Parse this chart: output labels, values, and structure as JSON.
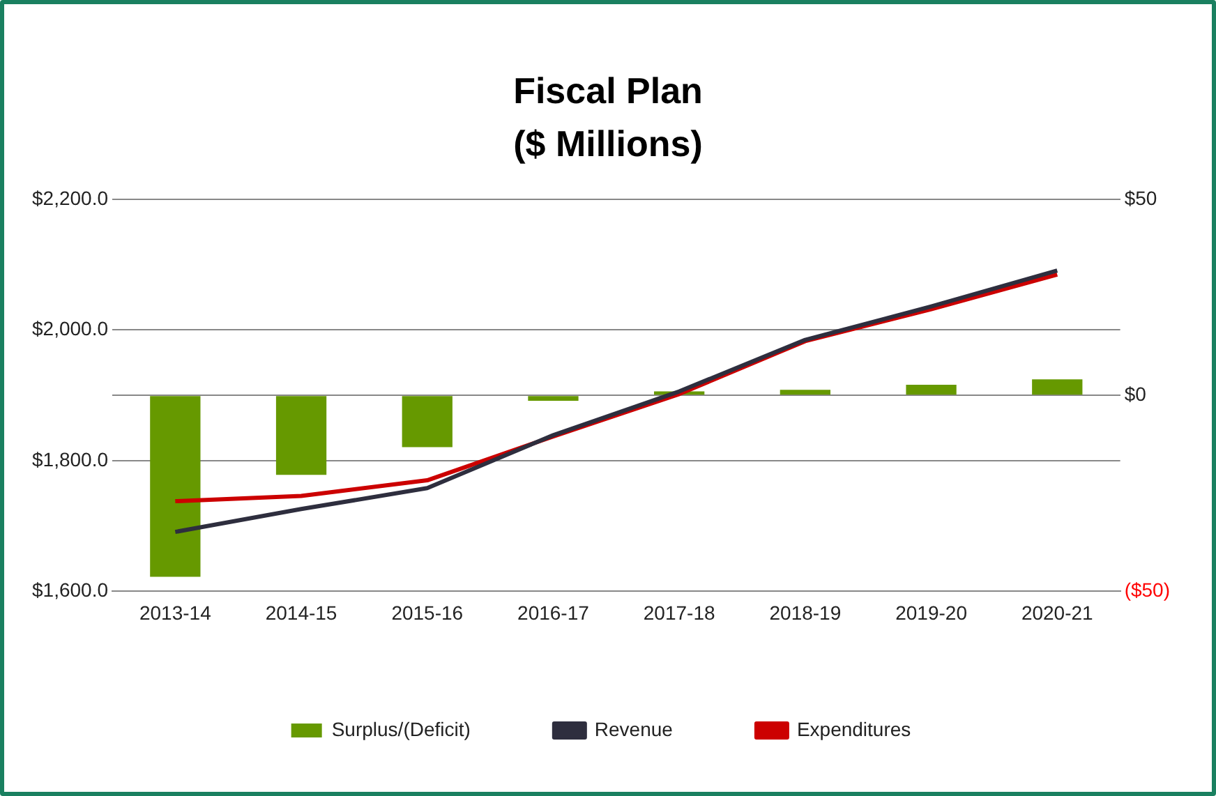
{
  "chart_data": {
    "type": "bar",
    "title": "Fiscal Plan\n($ Millions)",
    "categories": [
      "2013-14",
      "2014-15",
      "2015-16",
      "2016-17",
      "2017-18",
      "2018-19",
      "2019-20",
      "2020-21"
    ],
    "series": [
      {
        "name": "Surplus/(Deficit)",
        "axis": "y2",
        "color": "#669900",
        "values": [
          -46.3,
          -20.3,
          -13.2,
          -1.4,
          1.0,
          1.4,
          2.7,
          4.1
        ]
      },
      {
        "name": "Revenue",
        "type": "line",
        "axis": "y",
        "color": "#2e2e3e",
        "values": [
          1691,
          1726,
          1758,
          1839,
          1906,
          1985,
          2036,
          2091
        ]
      },
      {
        "name": "Expenditures",
        "type": "line",
        "axis": "y",
        "color": "#cc0000",
        "values": [
          1738,
          1746,
          1770,
          1837,
          1902,
          1983,
          2032,
          2085
        ]
      }
    ],
    "ylim": [
      1600,
      2200
    ],
    "yticks": [
      {
        "value": 1600,
        "label": "$1,600.0"
      },
      {
        "value": 1800,
        "label": "$1,800.0"
      },
      {
        "value": 2000,
        "label": "$2,000.0"
      },
      {
        "value": 2200,
        "label": "$2,200.0"
      }
    ],
    "y2lim": [
      -50,
      50
    ],
    "y2ticks": [
      {
        "value": -50,
        "label": "($50)"
      },
      {
        "value": 0,
        "label": "$0"
      },
      {
        "value": 50,
        "label": "$50"
      }
    ],
    "grid": "y",
    "legend": "bottom",
    "marker": "none",
    "line_style": "solid"
  }
}
